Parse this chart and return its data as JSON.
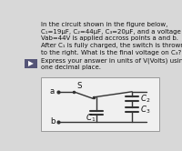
{
  "text_block": [
    "In the circuit shown in the figure below,",
    "C₁=19µF, C₂=44µF, C₃=20µF, and a voltage",
    "Vab=44V is applied accross points a and b.",
    "After C₁ is fully charged, the switch is thrown",
    "to the right. What is the final voltage on C₃?",
    "Express your answer in units of V(Volts) using",
    "one decimal place."
  ],
  "background_color": "#d8d8d8",
  "text_color": "#111111",
  "circuit_box_facecolor": "#f0f0f0",
  "circuit_box_edgecolor": "#999999",
  "wire_color": "#333333",
  "label_color": "#111111",
  "nav_button_color": "#555577",
  "text_fontsize": 5.0,
  "circuit_fontsize": 6.2,
  "lw": 1.0
}
